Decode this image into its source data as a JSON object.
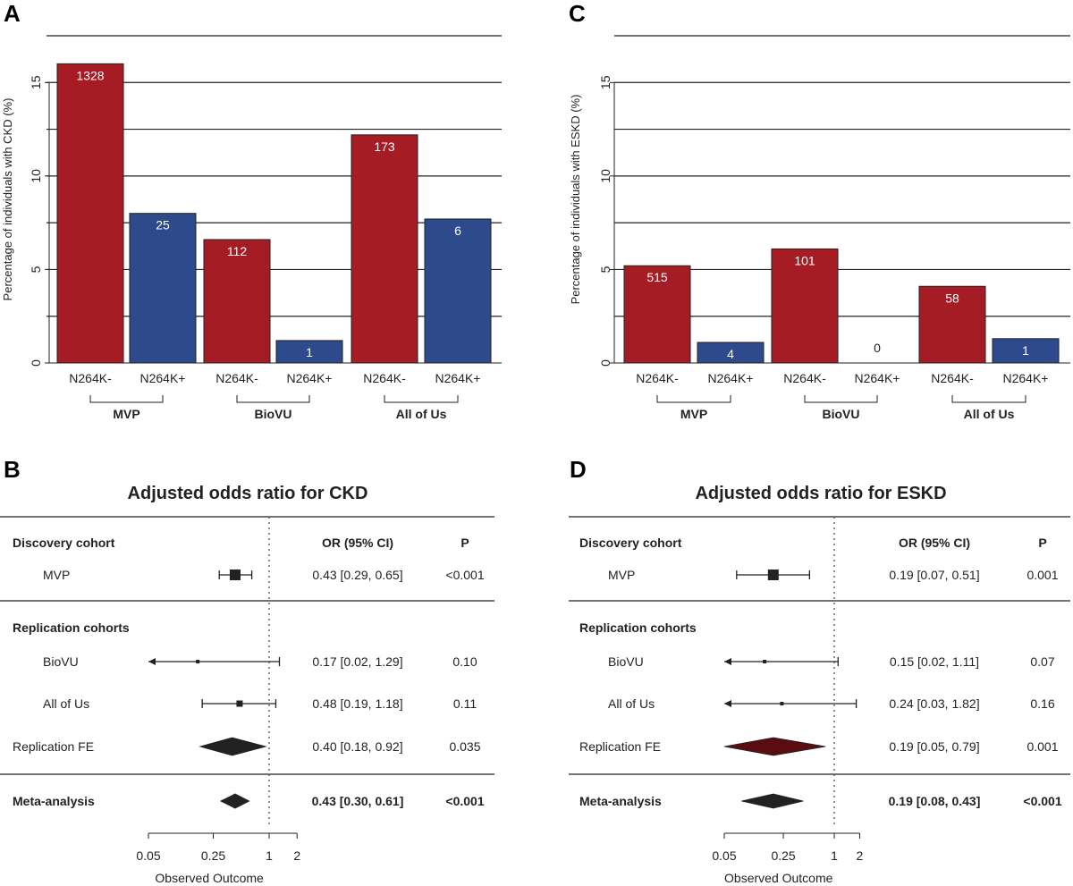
{
  "colors": {
    "neg": "#a51c24",
    "pos": "#2d4a8c",
    "text": "#222222",
    "marker": "#222222",
    "fe_d_fill": "#5a0d10"
  },
  "chart_data": [
    {
      "id": "A",
      "type": "bar",
      "panel_label": "A",
      "ylabel": "Percentage of individuals with CKD (%)",
      "ylim": [
        0,
        17.5
      ],
      "yticks": [
        0,
        5,
        10,
        15
      ],
      "gridlines": [
        2.5,
        5,
        7.5,
        10,
        12.5,
        15,
        17.5
      ],
      "categories": [
        "N264K-",
        "N264K+",
        "N264K-",
        "N264K+",
        "N264K-",
        "N264K+"
      ],
      "groups": [
        "MVP",
        "BioVU",
        "All of Us"
      ],
      "values": [
        16.0,
        8.0,
        6.6,
        1.2,
        12.2,
        7.7
      ],
      "carrier": [
        "neg",
        "pos",
        "neg",
        "pos",
        "neg",
        "pos"
      ],
      "bar_labels": [
        "1328",
        "25",
        "112",
        "1",
        "173",
        "6"
      ]
    },
    {
      "id": "C",
      "type": "bar",
      "panel_label": "C",
      "ylabel": "Percentage of individuals with ESKD (%)",
      "ylim": [
        0,
        17.5
      ],
      "yticks": [
        0,
        5,
        10,
        15
      ],
      "gridlines": [
        2.5,
        5,
        7.5,
        10,
        12.5,
        15,
        17.5
      ],
      "categories": [
        "N264K-",
        "N264K+",
        "N264K-",
        "N264K+",
        "N264K-",
        "N264K+"
      ],
      "groups": [
        "MVP",
        "BioVU",
        "All of Us"
      ],
      "values": [
        5.2,
        1.1,
        6.1,
        0,
        4.1,
        1.3
      ],
      "carrier": [
        "neg",
        "pos",
        "neg",
        "pos",
        "neg",
        "pos"
      ],
      "bar_labels": [
        "515",
        "4",
        "101",
        "0",
        "58",
        "1"
      ]
    },
    {
      "id": "B",
      "type": "forest",
      "panel_label": "B",
      "title": "Adjusted odds ratio for CKD",
      "header": {
        "discovery": "Discovery cohort",
        "or": "OR (95% CI)",
        "p": "P",
        "replication": "Replication cohorts"
      },
      "xlabel": "Observed Outcome",
      "xticks": [
        0.05,
        0.25,
        1,
        2
      ],
      "xtick_labels": [
        "0.05",
        "0.25",
        "1",
        "2"
      ],
      "ref_line": 1,
      "rows": [
        {
          "name": "MVP",
          "or": 0.43,
          "lo": 0.29,
          "hi": 0.65,
          "ci_text": "0.43 [0.29, 0.65]",
          "p": "<0.001",
          "kind": "box",
          "size": 12,
          "bold": false,
          "indent": true
        },
        {
          "name": "BioVU",
          "or": 0.17,
          "lo": 0.02,
          "hi": 1.29,
          "ci_text": "0.17 [0.02, 1.29]",
          "p": "0.10",
          "kind": "box",
          "size": 4,
          "bold": false,
          "indent": true
        },
        {
          "name": "All of Us",
          "or": 0.48,
          "lo": 0.19,
          "hi": 1.18,
          "ci_text": "0.48 [0.19, 1.18]",
          "p": "0.11",
          "kind": "box",
          "size": 7,
          "bold": false,
          "indent": true
        },
        {
          "name": "Replication FE",
          "or": 0.4,
          "lo": 0.18,
          "hi": 0.92,
          "ci_text": "0.40 [0.18, 0.92]",
          "p": "0.035",
          "kind": "diamond",
          "size": 0,
          "bold": false,
          "indent": false
        },
        {
          "name": "Meta-analysis",
          "or": 0.43,
          "lo": 0.3,
          "hi": 0.61,
          "ci_text": "0.43 [0.30, 0.61]",
          "p": "<0.001",
          "kind": "diamond",
          "size": 0,
          "bold": true,
          "indent": false
        }
      ]
    },
    {
      "id": "D",
      "type": "forest",
      "panel_label": "D",
      "title": "Adjusted odds ratio for ESKD",
      "header": {
        "discovery": "Discovery cohort",
        "or": "OR (95% CI)",
        "p": "P",
        "replication": "Replication cohorts"
      },
      "xlabel": "Observed Outcome",
      "xticks": [
        0.05,
        0.25,
        1,
        2
      ],
      "xtick_labels": [
        "0.05",
        "0.25",
        "1",
        "2"
      ],
      "ref_line": 1,
      "rows": [
        {
          "name": "MVP",
          "or": 0.19,
          "lo": 0.07,
          "hi": 0.51,
          "ci_text": "0.19 [0.07, 0.51]",
          "p": "0.001",
          "kind": "box",
          "size": 12,
          "bold": false,
          "indent": true
        },
        {
          "name": "BioVU",
          "or": 0.15,
          "lo": 0.02,
          "hi": 1.11,
          "ci_text": "0.15 [0.02, 1.11]",
          "p": "0.07",
          "kind": "box",
          "size": 4,
          "bold": false,
          "indent": true
        },
        {
          "name": "All of Us",
          "or": 0.24,
          "lo": 0.03,
          "hi": 1.82,
          "ci_text": "0.24 [0.03, 1.82]",
          "p": "0.16",
          "kind": "box",
          "size": 4,
          "bold": false,
          "indent": true
        },
        {
          "name": "Replication FE",
          "or": 0.19,
          "lo": 0.05,
          "hi": 0.79,
          "ci_text": "0.19 [0.05, 0.79]",
          "p": "0.001",
          "kind": "diamond",
          "size": 0,
          "bold": false,
          "indent": false
        },
        {
          "name": "Meta-analysis",
          "or": 0.19,
          "lo": 0.08,
          "hi": 0.43,
          "ci_text": "0.19 [0.08, 0.43]",
          "p": "<0.001",
          "kind": "diamond",
          "size": 0,
          "bold": true,
          "indent": false
        }
      ]
    }
  ]
}
